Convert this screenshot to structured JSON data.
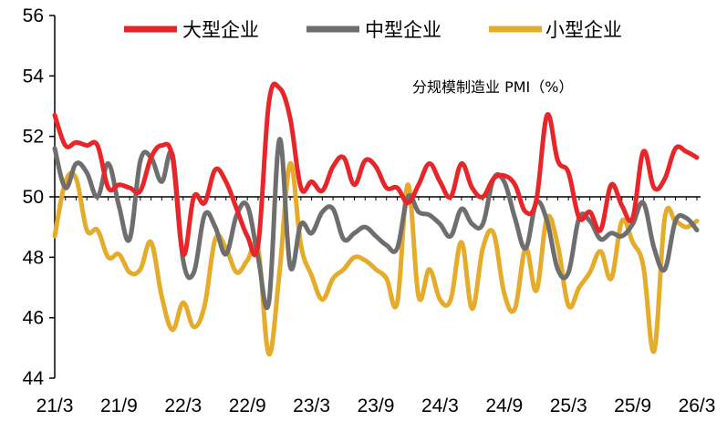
{
  "chart_data": {
    "type": "line",
    "annotation": "分规模制造业 PMI（%）",
    "ylim": [
      44,
      56
    ],
    "yticks": [
      44,
      46,
      48,
      50,
      52,
      54,
      56
    ],
    "reference_line": 50,
    "x": [
      "21/3",
      "21/4",
      "21/5",
      "21/6",
      "21/7",
      "21/8",
      "21/9",
      "21/10",
      "21/11",
      "21/12",
      "22/1",
      "22/2",
      "22/3",
      "22/4",
      "22/5",
      "22/6",
      "22/7",
      "22/8",
      "22/9",
      "22/10",
      "22/11",
      "22/12",
      "23/1",
      "23/2",
      "23/3",
      "23/4",
      "23/5",
      "23/6",
      "23/7",
      "23/8",
      "23/9",
      "23/10",
      "23/11",
      "23/12",
      "24/1",
      "24/2",
      "24/3",
      "24/4",
      "24/5",
      "24/6",
      "24/7",
      "24/8",
      "24/9",
      "24/10",
      "24/11",
      "24/12",
      "25/1",
      "25/2",
      "25/3",
      "25/4",
      "25/5",
      "25/6",
      "25/7",
      "25/8",
      "25/9",
      "25/10",
      "25/11",
      "25/12",
      "26/1",
      "26/2",
      "26/3"
    ],
    "xtick_labels": [
      "21/3",
      "21/9",
      "22/3",
      "22/9",
      "23/3",
      "23/9",
      "24/3",
      "24/9",
      "25/3",
      "25/9",
      "26/3"
    ],
    "legend_position": "top",
    "grid": false,
    "series": [
      {
        "name": "大型企业",
        "color": "#E8262A",
        "values": [
          52.7,
          51.7,
          51.8,
          51.7,
          51.7,
          50.3,
          50.4,
          50.3,
          50.2,
          51.3,
          51.7,
          51.3,
          48.1,
          50.0,
          49.8,
          50.9,
          50.5,
          49.6,
          48.7,
          48.4,
          53.1,
          53.6,
          52.6,
          50.3,
          50.5,
          50.2,
          51.0,
          51.3,
          50.4,
          51.2,
          51.0,
          50.3,
          50.3,
          49.8,
          50.4,
          51.1,
          50.5,
          50.0,
          51.1,
          50.3,
          50.0,
          50.6,
          50.7,
          50.4,
          49.5,
          49.9,
          52.7,
          51.2,
          50.8,
          49.3,
          49.5,
          48.9,
          50.4,
          49.7,
          49.3,
          51.5,
          50.3,
          50.6,
          51.6,
          51.5,
          51.3
        ]
      },
      {
        "name": "中型企业",
        "color": "#6E6E6E",
        "values": [
          51.6,
          50.3,
          51.1,
          50.8,
          50.0,
          51.1,
          49.7,
          48.6,
          51.2,
          51.3,
          50.5,
          51.4,
          47.9,
          47.5,
          49.4,
          49.0,
          48.1,
          49.4,
          49.7,
          48.0,
          46.5,
          51.9,
          47.7,
          49.1,
          48.8,
          49.5,
          49.6,
          48.6,
          48.8,
          49.0,
          48.7,
          48.4,
          48.3,
          50.0,
          49.5,
          49.4,
          49.1,
          48.7,
          49.6,
          49.1,
          49.1,
          50.6,
          50.5,
          49.3,
          48.3,
          49.8,
          49.2,
          47.6,
          47.5,
          49.3,
          49.2,
          48.6,
          48.8,
          48.7,
          49.1,
          49.8,
          48.3,
          47.6,
          49.2,
          49.3,
          48.9
        ]
      },
      {
        "name": "小型企业",
        "color": "#E5AC2B",
        "values": [
          48.7,
          50.5,
          50.6,
          48.9,
          48.9,
          48.0,
          48.1,
          47.5,
          47.6,
          48.5,
          46.7,
          45.6,
          46.5,
          45.7,
          46.4,
          48.6,
          48.3,
          47.5,
          47.9,
          48.3,
          44.8,
          47.5,
          51.1,
          48.4,
          47.4,
          46.6,
          47.3,
          47.6,
          48.0,
          47.9,
          47.6,
          47.3,
          46.5,
          50.4,
          46.7,
          47.6,
          46.6,
          46.6,
          48.5,
          46.3,
          48.3,
          48.8,
          46.8,
          46.3,
          48.3,
          46.9,
          49.3,
          48.4,
          46.4,
          47.0,
          47.5,
          48.2,
          47.3,
          49.2,
          48.5,
          47.7,
          44.9,
          49.3,
          49.2,
          49.0,
          49.2
        ]
      }
    ]
  }
}
